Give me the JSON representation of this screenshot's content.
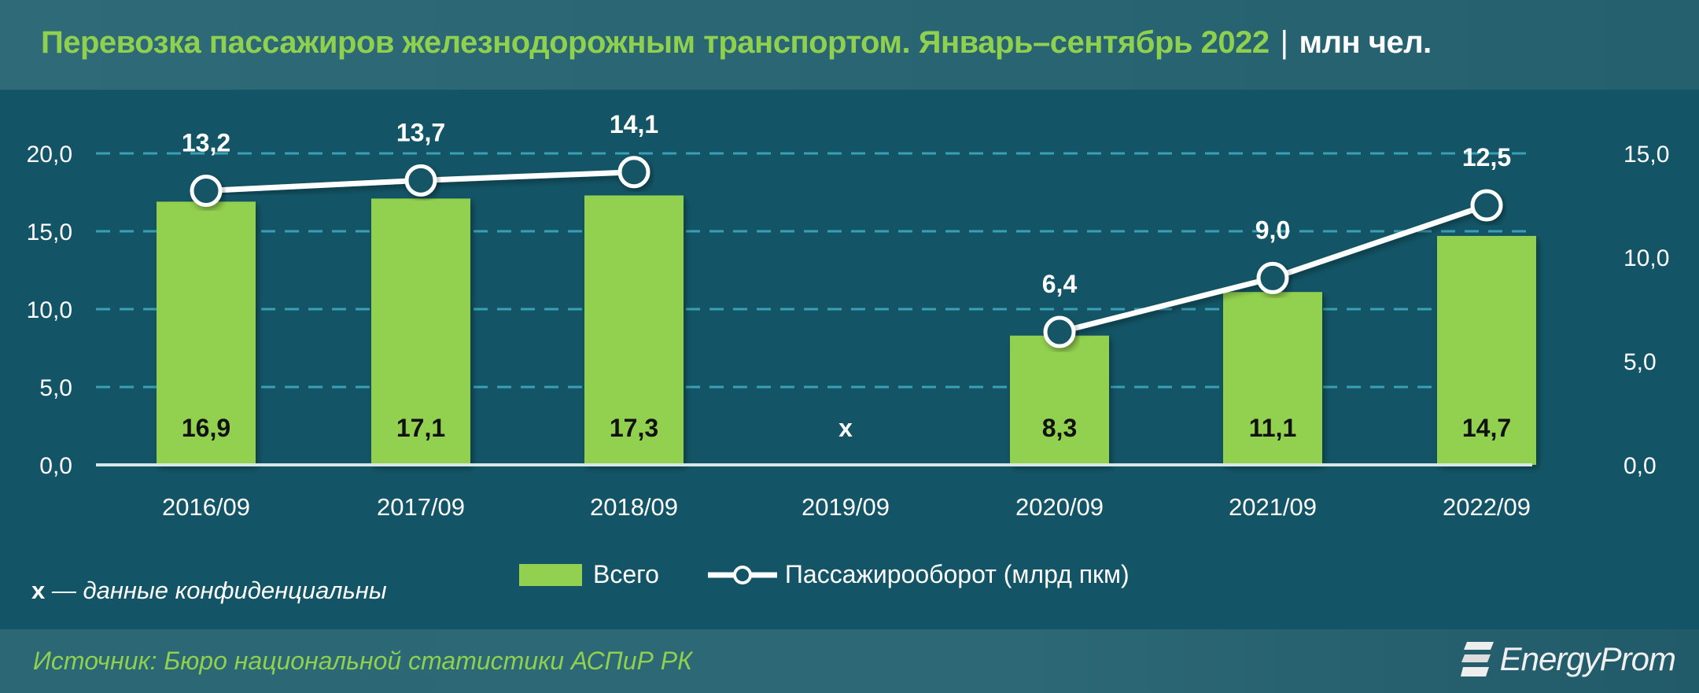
{
  "header": {
    "title": "Перевозка пассажиров железнодорожным транспортом. Январь–сентябрь 2022",
    "separator": "|",
    "unit": "млн чел."
  },
  "footer": {
    "source": "Источник: Бюро национальной статистики АСПиР РК",
    "logo_text": "EnergyProm"
  },
  "note": {
    "marker": "x",
    "text": " — данные конфиденциальны"
  },
  "legend": {
    "bar_label": "Всего",
    "line_label": "Пассажирооборот (млрд пкм)"
  },
  "colors": {
    "background": "#135566",
    "bar": "#92d050",
    "line": "#ffffff",
    "title_green": "#8fd14f",
    "grid": "#3aa0b4"
  },
  "chart_data": {
    "type": "bar",
    "title": "Перевозка пассажиров железнодорожным транспортом. Январь–сентябрь 2022 | млн чел.",
    "categories": [
      "2016/09",
      "2017/09",
      "2018/09",
      "2019/09",
      "2020/09",
      "2021/09",
      "2022/09"
    ],
    "series": [
      {
        "name": "Всего",
        "type": "bar",
        "axis": "left",
        "values": [
          16.9,
          17.1,
          17.3,
          null,
          8.3,
          11.1,
          14.7
        ],
        "labels": [
          "16,9",
          "17,1",
          "17,3",
          "x",
          "8,3",
          "11,1",
          "14,7"
        ]
      },
      {
        "name": "Пассажирооборот (млрд пкм)",
        "type": "line",
        "axis": "right",
        "values": [
          13.2,
          13.7,
          14.1,
          null,
          6.4,
          9.0,
          12.5
        ],
        "labels": [
          "13,2",
          "13,7",
          "14,1",
          "",
          "6,4",
          "9,0",
          "12,5"
        ]
      }
    ],
    "left_axis": {
      "ticks": [
        "0,0",
        "5,0",
        "10,0",
        "15,0",
        "20,0"
      ],
      "ylim": [
        0,
        20
      ]
    },
    "right_axis": {
      "ticks": [
        "0,0",
        "5,0",
        "10,0",
        "15,0"
      ],
      "ylim": [
        0,
        15
      ]
    },
    "grid": "dashed horizontal",
    "legend_position": "bottom",
    "annotation": "x — данные конфиденциальны"
  }
}
